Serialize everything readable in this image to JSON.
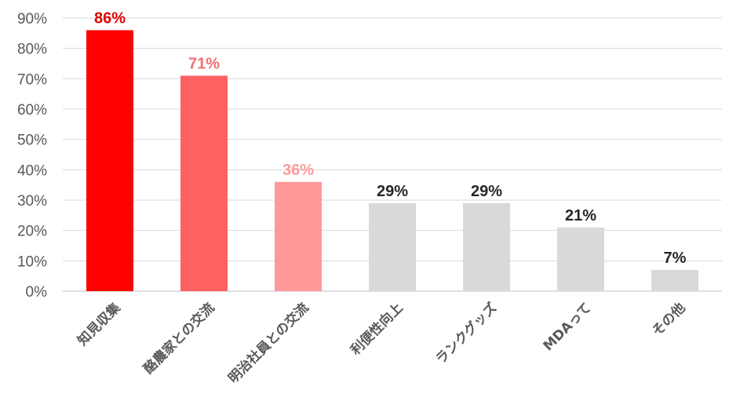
{
  "chart_data": {
    "type": "bar",
    "categories": [
      "知見収集",
      "酪農家との交流",
      "明治社員との交流",
      "利便性向上",
      "ランクグッズ",
      "MDAって",
      "その他"
    ],
    "values": [
      86,
      71,
      36,
      29,
      29,
      21,
      7
    ],
    "data_labels": [
      "86%",
      "71%",
      "36%",
      "29%",
      "29%",
      "21%",
      "7%"
    ],
    "bar_colors": [
      "#ff0000",
      "#ff6161",
      "#ff9999",
      "#d9d9d9",
      "#d9d9d9",
      "#d9d9d9",
      "#d9d9d9"
    ],
    "label_colors": [
      "#e00000",
      "#f07070",
      "#ff9999",
      "#262626",
      "#262626",
      "#262626",
      "#262626"
    ],
    "y_ticks": [
      0,
      10,
      20,
      30,
      40,
      50,
      60,
      70,
      80,
      90
    ],
    "y_tick_labels": [
      "0%",
      "10%",
      "20%",
      "30%",
      "40%",
      "50%",
      "60%",
      "70%",
      "80%",
      "90%"
    ],
    "ylim": [
      0,
      90
    ],
    "grid": true,
    "legend": "none",
    "title": "",
    "xlabel": "",
    "ylabel": ""
  }
}
